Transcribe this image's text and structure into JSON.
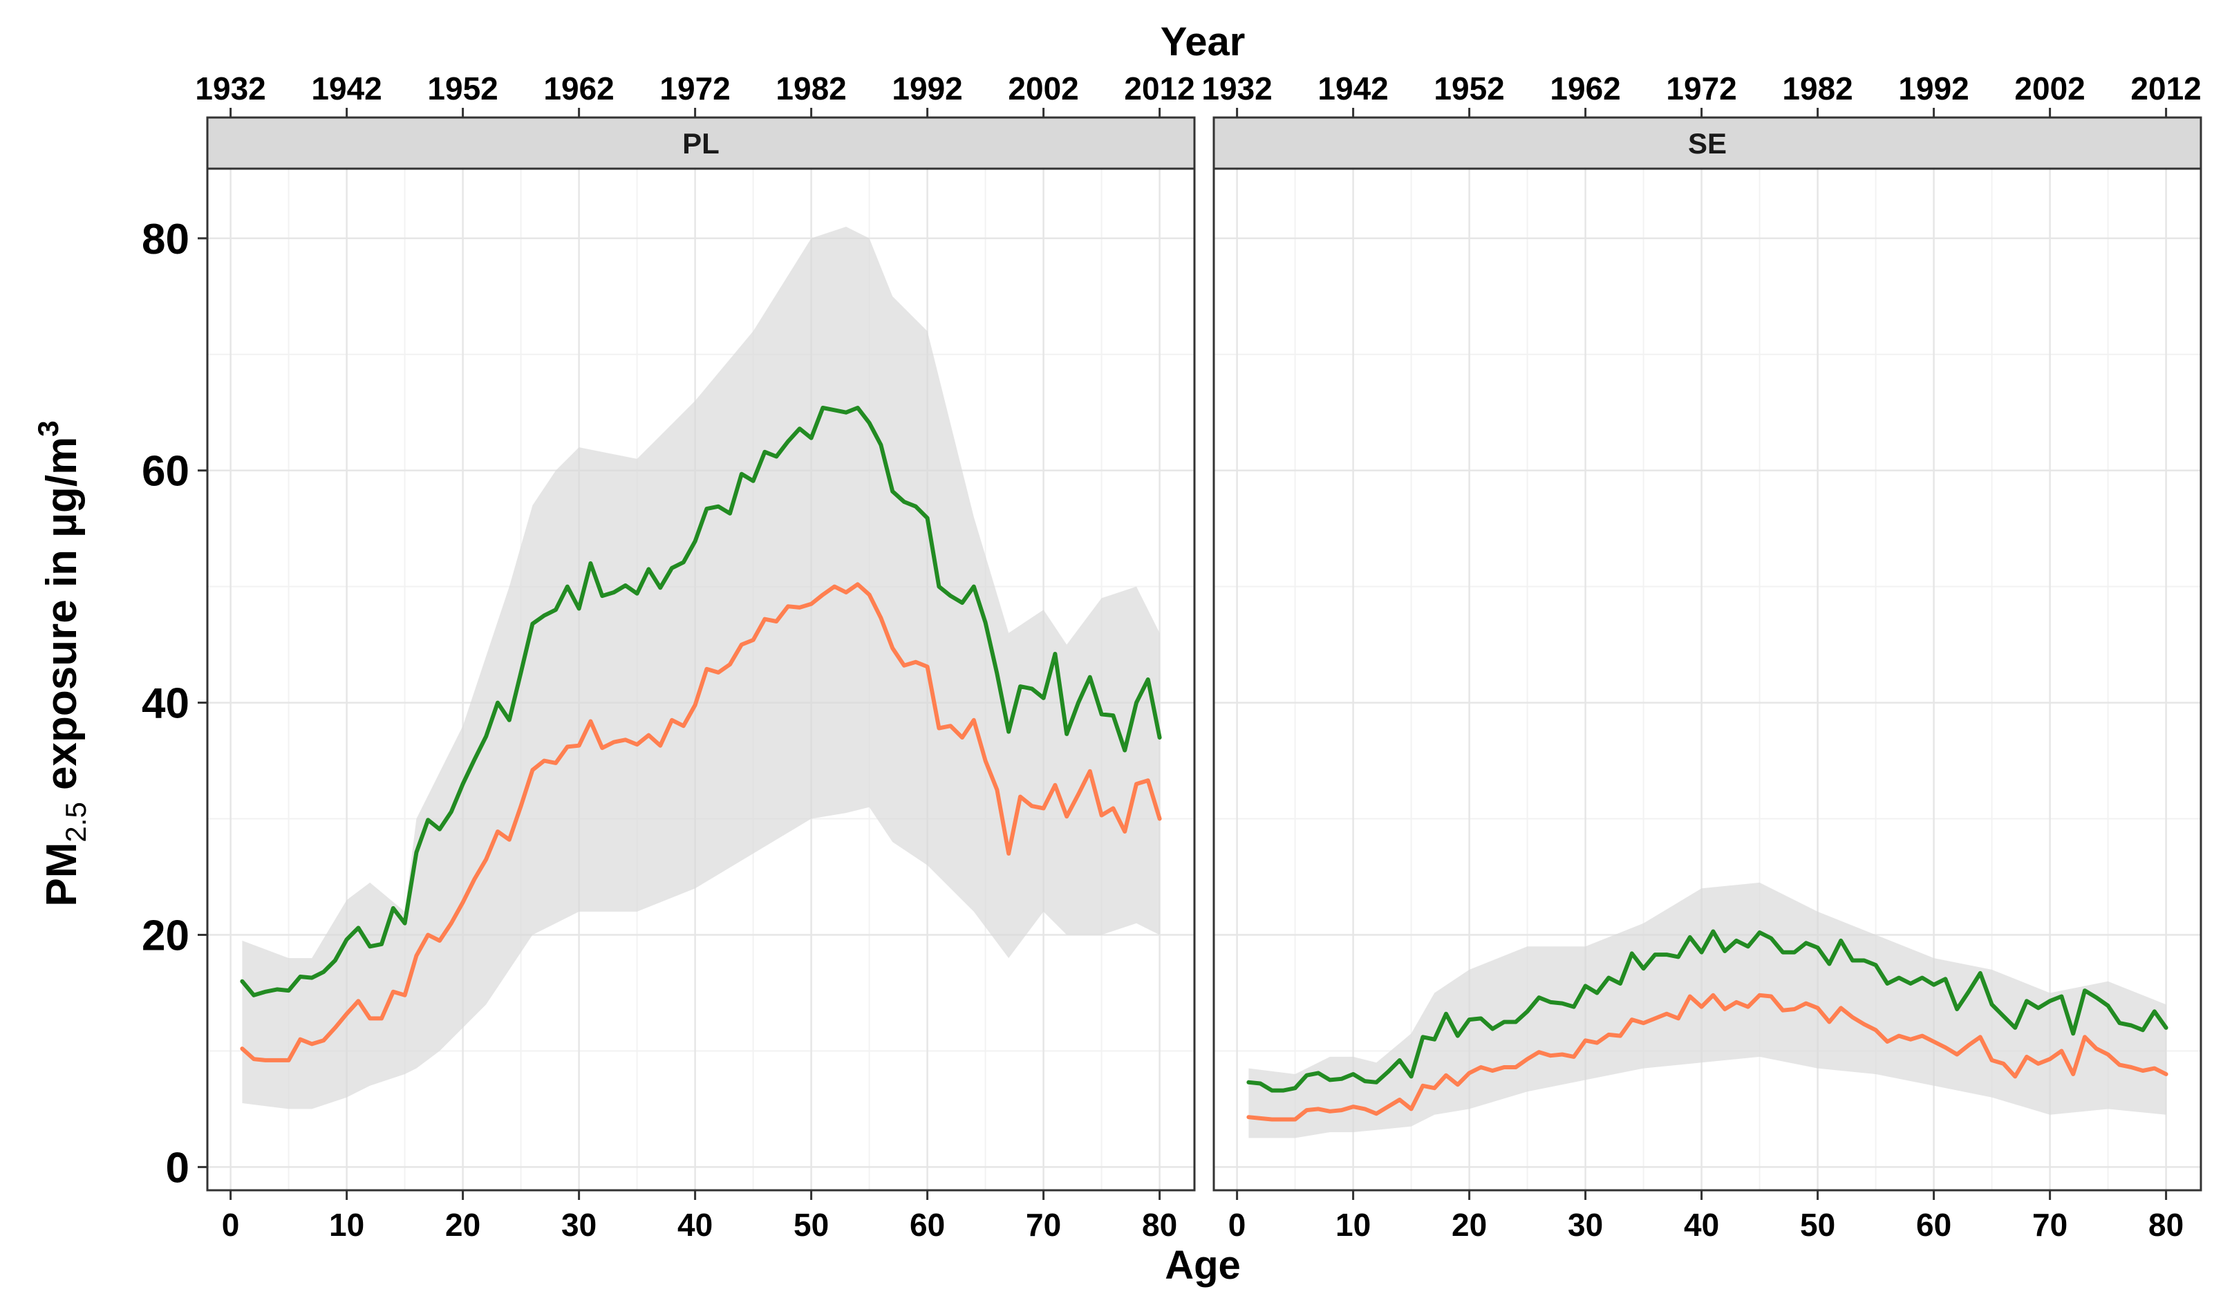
{
  "chart_data": {
    "type": "line",
    "x_axis_bottom": {
      "label": "Age",
      "ticks": [
        0,
        10,
        20,
        30,
        40,
        50,
        60,
        70,
        80
      ],
      "range": [
        -2,
        83
      ]
    },
    "x_axis_top": {
      "label": "Year",
      "ticks": [
        1932,
        1942,
        1952,
        1962,
        1972,
        1982,
        1992,
        2002,
        2012
      ]
    },
    "y_axis": {
      "label_prefix": "PM",
      "label_sub": "2.5",
      "label_main": " exposure in µg/m",
      "label_sup": "3",
      "ticks": [
        0,
        20,
        40,
        60,
        80
      ],
      "range": [
        -2,
        86
      ]
    },
    "grid": true,
    "panels": [
      {
        "name": "PL",
        "ribbon": {
          "x": [
            1,
            5,
            7,
            10,
            12,
            15,
            16,
            18,
            20,
            22,
            24,
            26,
            28,
            30,
            35,
            40,
            45,
            50,
            53,
            55,
            57,
            60,
            64,
            67,
            70,
            72,
            75,
            78,
            80
          ],
          "upper": [
            19.5,
            18,
            18,
            23,
            24.5,
            22,
            30,
            34,
            38,
            44,
            50,
            57,
            60,
            62,
            61,
            66,
            72,
            80,
            81,
            80,
            75,
            72,
            56,
            46,
            48,
            45,
            49,
            50,
            46
          ],
          "lower": [
            5.5,
            5,
            5,
            6,
            7,
            8,
            8.5,
            10,
            12,
            14,
            17,
            20,
            21,
            22,
            22,
            24,
            27,
            30,
            30.5,
            31,
            28,
            26,
            22,
            18,
            22,
            20,
            20,
            21,
            20
          ]
        },
        "series": [
          {
            "color": "#228B22",
            "x": [
              1,
              2,
              3,
              4,
              5,
              6,
              7,
              8,
              9,
              10,
              11,
              12,
              13,
              14,
              15,
              16,
              17,
              18,
              19,
              20,
              21,
              22,
              23,
              24,
              25,
              26,
              27,
              28,
              29,
              30,
              31,
              32,
              33,
              34,
              35,
              36,
              37,
              38,
              39,
              40,
              41,
              42,
              43,
              44,
              45,
              46,
              47,
              48,
              49,
              50,
              51,
              52,
              53,
              54,
              55,
              56,
              57,
              58,
              59,
              60,
              61,
              62,
              63,
              64,
              65,
              66,
              67,
              68,
              69,
              70,
              71,
              72,
              73,
              74,
              75,
              76,
              77,
              78,
              79,
              80
            ],
            "y": [
              16,
              14.8,
              15.1,
              15.3,
              15.2,
              16.4,
              16.3,
              16.8,
              17.8,
              19.6,
              20.6,
              19,
              19.2,
              22.3,
              21,
              27.1,
              29.9,
              29.1,
              30.6,
              33,
              35.1,
              37.1,
              40,
              38.5,
              42.6,
              46.8,
              47.5,
              48,
              50,
              48.1,
              52,
              49.2,
              49.5,
              50.1,
              49.4,
              51.5,
              49.9,
              51.6,
              52.1,
              53.9,
              56.7,
              56.9,
              56.3,
              59.7,
              59.1,
              61.6,
              61.2,
              62.5,
              63.6,
              62.8,
              65.4,
              65.2,
              65,
              65.4,
              64.1,
              62.2,
              58.2,
              57.3,
              56.9,
              55.9,
              50,
              49.2,
              48.6,
              50,
              46.9,
              42.5,
              37.5,
              41.4,
              41.2,
              40.4,
              44.2,
              37.3,
              40,
              42.2,
              39,
              38.9,
              35.9,
              40,
              42,
              37
            ]
          },
          {
            "color": "#FF7F50",
            "x": [
              1,
              2,
              3,
              4,
              5,
              6,
              7,
              8,
              9,
              10,
              11,
              12,
              13,
              14,
              15,
              16,
              17,
              18,
              19,
              20,
              21,
              22,
              23,
              24,
              25,
              26,
              27,
              28,
              29,
              30,
              31,
              32,
              33,
              34,
              35,
              36,
              37,
              38,
              39,
              40,
              41,
              42,
              43,
              44,
              45,
              46,
              47,
              48,
              49,
              50,
              51,
              52,
              53,
              54,
              55,
              56,
              57,
              58,
              59,
              60,
              61,
              62,
              63,
              64,
              65,
              66,
              67,
              68,
              69,
              70,
              71,
              72,
              73,
              74,
              75,
              76,
              77,
              78,
              79,
              80
            ],
            "y": [
              10.2,
              9.3,
              9.2,
              9.2,
              9.2,
              11,
              10.6,
              10.9,
              12,
              13.2,
              14.3,
              12.8,
              12.8,
              15.1,
              14.8,
              18.2,
              20,
              19.5,
              21,
              22.8,
              24.8,
              26.5,
              28.9,
              28.2,
              31.1,
              34.2,
              35,
              34.8,
              36.2,
              36.3,
              38.4,
              36.1,
              36.6,
              36.8,
              36.4,
              37.2,
              36.3,
              38.5,
              38,
              39.8,
              42.9,
              42.6,
              43.3,
              45,
              45.4,
              47.2,
              47,
              48.3,
              48.2,
              48.5,
              49.3,
              50,
              49.5,
              50.2,
              49.3,
              47.3,
              44.7,
              43.2,
              43.5,
              43.1,
              37.8,
              38,
              37,
              38.5,
              35,
              32.5,
              27,
              31.9,
              31.1,
              30.9,
              32.9,
              30.2,
              32.1,
              34.1,
              30.3,
              30.9,
              28.9,
              33,
              33.3,
              30
            ]
          }
        ]
      },
      {
        "name": "SE",
        "ribbon": {
          "x": [
            1,
            5,
            8,
            10,
            12,
            15,
            17,
            20,
            25,
            30,
            35,
            40,
            45,
            50,
            55,
            60,
            65,
            70,
            75,
            80
          ],
          "upper": [
            8.5,
            8,
            9.5,
            9.5,
            9,
            11.5,
            15,
            17,
            19,
            19,
            21,
            24,
            24.5,
            22,
            20,
            18,
            17,
            15,
            16,
            14
          ],
          "lower": [
            2.5,
            2.5,
            3,
            3,
            3.2,
            3.5,
            4.5,
            5,
            6.5,
            7.5,
            8.5,
            9,
            9.5,
            8.5,
            8,
            7,
            6,
            4.5,
            5,
            4.5
          ]
        },
        "series": [
          {
            "color": "#228B22",
            "x": [
              1,
              2,
              3,
              4,
              5,
              6,
              7,
              8,
              9,
              10,
              11,
              12,
              13,
              14,
              15,
              16,
              17,
              18,
              19,
              20,
              21,
              22,
              23,
              24,
              25,
              26,
              27,
              28,
              29,
              30,
              31,
              32,
              33,
              34,
              35,
              36,
              37,
              38,
              39,
              40,
              41,
              42,
              43,
              44,
              45,
              46,
              47,
              48,
              49,
              50,
              51,
              52,
              53,
              54,
              55,
              56,
              57,
              58,
              59,
              60,
              61,
              62,
              63,
              64,
              65,
              66,
              67,
              68,
              69,
              70,
              71,
              72,
              73,
              74,
              75,
              76,
              77,
              78,
              79,
              80
            ],
            "y": [
              7.3,
              7.2,
              6.6,
              6.6,
              6.8,
              7.9,
              8.1,
              7.5,
              7.6,
              8,
              7.4,
              7.3,
              8.2,
              9.2,
              7.8,
              11.2,
              11,
              13.2,
              11.3,
              12.7,
              12.8,
              11.9,
              12.5,
              12.5,
              13.4,
              14.6,
              14.2,
              14.1,
              13.8,
              15.6,
              15,
              16.3,
              15.8,
              18.4,
              17.1,
              18.3,
              18.3,
              18.1,
              19.8,
              18.5,
              20.3,
              18.6,
              19.5,
              19,
              20.2,
              19.7,
              18.5,
              18.5,
              19.3,
              18.9,
              17.5,
              19.5,
              17.8,
              17.8,
              17.4,
              15.8,
              16.3,
              15.8,
              16.3,
              15.7,
              16.2,
              13.6,
              15.1,
              16.7,
              14,
              13,
              12,
              14.3,
              13.7,
              14.3,
              14.7,
              11.5,
              15.2,
              14.6,
              13.9,
              12.4,
              12.2,
              11.8,
              13.4,
              12
            ]
          },
          {
            "color": "#FF7F50",
            "x": [
              1,
              2,
              3,
              4,
              5,
              6,
              7,
              8,
              9,
              10,
              11,
              12,
              13,
              14,
              15,
              16,
              17,
              18,
              19,
              20,
              21,
              22,
              23,
              24,
              25,
              26,
              27,
              28,
              29,
              30,
              31,
              32,
              33,
              34,
              35,
              36,
              37,
              38,
              39,
              40,
              41,
              42,
              43,
              44,
              45,
              46,
              47,
              48,
              49,
              50,
              51,
              52,
              53,
              54,
              55,
              56,
              57,
              58,
              59,
              60,
              61,
              62,
              63,
              64,
              65,
              66,
              67,
              68,
              69,
              70,
              71,
              72,
              73,
              74,
              75,
              76,
              77,
              78,
              79,
              80
            ],
            "y": [
              4.3,
              4.2,
              4.1,
              4.1,
              4.1,
              4.9,
              5,
              4.8,
              4.9,
              5.2,
              5,
              4.6,
              5.2,
              5.8,
              5,
              7,
              6.8,
              7.9,
              7.1,
              8.1,
              8.6,
              8.3,
              8.6,
              8.6,
              9.3,
              9.9,
              9.6,
              9.7,
              9.5,
              10.9,
              10.7,
              11.4,
              11.3,
              12.7,
              12.4,
              12.8,
              13.2,
              12.8,
              14.7,
              13.8,
              14.8,
              13.6,
              14.2,
              13.8,
              14.8,
              14.7,
              13.5,
              13.6,
              14.1,
              13.7,
              12.5,
              13.7,
              12.9,
              12.3,
              11.8,
              10.8,
              11.3,
              11,
              11.3,
              10.8,
              10.3,
              9.7,
              10.5,
              11.2,
              9.2,
              8.9,
              7.8,
              9.5,
              8.9,
              9.3,
              10,
              8,
              11.2,
              10.2,
              9.7,
              8.8,
              8.6,
              8.3,
              8.5,
              8
            ]
          }
        ]
      }
    ]
  }
}
